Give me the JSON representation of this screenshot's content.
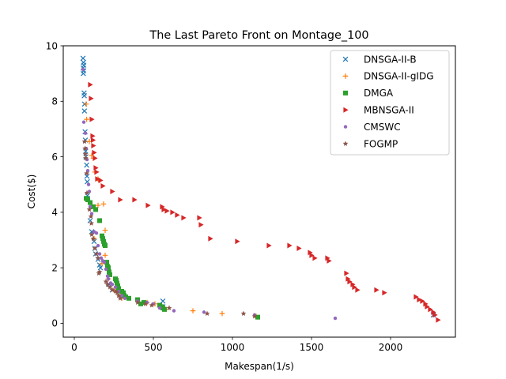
{
  "chart_data": {
    "type": "scatter",
    "title": "The Last Pareto Front on Montage_100",
    "xlabel": "Makespan(1/s)",
    "ylabel": "Cost($)",
    "xlim": [
      -70,
      2410
    ],
    "ylim": [
      -0.5,
      10.0
    ],
    "xticks": [
      0,
      500,
      1000,
      1500,
      2000
    ],
    "yticks": [
      0,
      2,
      4,
      6,
      8,
      10
    ],
    "grid": false,
    "legend_position": "top-right",
    "series": [
      {
        "name": "DNSGA-II-B",
        "marker": "x",
        "color": "#1f77b4",
        "points": [
          [
            55,
            9.55
          ],
          [
            58,
            9.4
          ],
          [
            60,
            9.3
          ],
          [
            56,
            9.2
          ],
          [
            59,
            9.1
          ],
          [
            57,
            9.0
          ],
          [
            62,
            8.3
          ],
          [
            63,
            8.2
          ],
          [
            65,
            7.9
          ],
          [
            64,
            7.65
          ],
          [
            68,
            6.9
          ],
          [
            70,
            6.6
          ],
          [
            72,
            6.2
          ],
          [
            73,
            6.0
          ],
          [
            78,
            5.7
          ],
          [
            80,
            5.3
          ],
          [
            82,
            5.1
          ],
          [
            83,
            4.6
          ],
          [
            84,
            4.5
          ],
          [
            100,
            3.7
          ],
          [
            110,
            3.3
          ],
          [
            125,
            2.95
          ],
          [
            130,
            2.7
          ],
          [
            135,
            2.5
          ],
          [
            150,
            2.3
          ],
          [
            160,
            2.1
          ],
          [
            165,
            2.0
          ],
          [
            220,
            1.4
          ],
          [
            240,
            1.2
          ],
          [
            300,
            0.95
          ],
          [
            560,
            0.8
          ],
          [
            560,
            0.6
          ],
          [
            2270,
            0.3
          ]
        ]
      },
      {
        "name": "DNSGA-II-gIDG",
        "marker": "+",
        "color": "#ff7f0e",
        "points": [
          [
            75,
            7.9
          ],
          [
            78,
            7.35
          ],
          [
            95,
            6.55
          ],
          [
            110,
            6.05
          ],
          [
            120,
            5.95
          ],
          [
            130,
            5.45
          ],
          [
            150,
            5.2
          ],
          [
            160,
            5.15
          ],
          [
            185,
            4.3
          ],
          [
            150,
            4.25
          ],
          [
            195,
            3.35
          ],
          [
            125,
            3.05
          ],
          [
            195,
            2.45
          ],
          [
            175,
            2.15
          ],
          [
            215,
            1.6
          ],
          [
            250,
            1.2
          ],
          [
            290,
            1.0
          ],
          [
            300,
            0.9
          ],
          [
            460,
            0.75
          ],
          [
            510,
            0.7
          ],
          [
            580,
            0.5
          ],
          [
            750,
            0.45
          ],
          [
            935,
            0.35
          ],
          [
            1150,
            0.25
          ]
        ]
      },
      {
        "name": "DMGA",
        "marker": "square",
        "color": "#2ca02c",
        "points": [
          [
            75,
            4.5
          ],
          [
            85,
            4.45
          ],
          [
            100,
            4.35
          ],
          [
            120,
            4.2
          ],
          [
            135,
            4.1
          ],
          [
            160,
            3.7
          ],
          [
            175,
            3.15
          ],
          [
            180,
            3.05
          ],
          [
            185,
            2.95
          ],
          [
            190,
            2.85
          ],
          [
            195,
            2.8
          ],
          [
            205,
            2.2
          ],
          [
            210,
            2.05
          ],
          [
            215,
            2.0
          ],
          [
            220,
            1.85
          ],
          [
            225,
            1.75
          ],
          [
            260,
            1.6
          ],
          [
            265,
            1.55
          ],
          [
            270,
            1.45
          ],
          [
            275,
            1.35
          ],
          [
            280,
            1.25
          ],
          [
            300,
            1.15
          ],
          [
            310,
            1.1
          ],
          [
            315,
            1.0
          ],
          [
            325,
            0.95
          ],
          [
            345,
            0.9
          ],
          [
            400,
            0.85
          ],
          [
            420,
            0.7
          ],
          [
            440,
            0.75
          ],
          [
            540,
            0.65
          ],
          [
            550,
            0.6
          ],
          [
            560,
            0.55
          ],
          [
            570,
            0.5
          ],
          [
            1160,
            0.22
          ]
        ]
      },
      {
        "name": "MBNSGA-II",
        "marker": "triangle-right",
        "color": "#d62728",
        "points": [
          [
            100,
            8.6
          ],
          [
            105,
            8.1
          ],
          [
            110,
            7.35
          ],
          [
            115,
            6.75
          ],
          [
            118,
            6.6
          ],
          [
            120,
            6.4
          ],
          [
            125,
            6.15
          ],
          [
            130,
            5.95
          ],
          [
            135,
            5.6
          ],
          [
            140,
            5.45
          ],
          [
            145,
            5.2
          ],
          [
            165,
            5.15
          ],
          [
            180,
            4.95
          ],
          [
            240,
            4.75
          ],
          [
            290,
            4.45
          ],
          [
            380,
            4.45
          ],
          [
            465,
            4.25
          ],
          [
            555,
            4.2
          ],
          [
            565,
            4.1
          ],
          [
            585,
            4.05
          ],
          [
            620,
            4.0
          ],
          [
            650,
            3.9
          ],
          [
            690,
            3.8
          ],
          [
            790,
            3.8
          ],
          [
            800,
            3.55
          ],
          [
            860,
            3.05
          ],
          [
            1030,
            2.95
          ],
          [
            1230,
            2.8
          ],
          [
            1360,
            2.8
          ],
          [
            1420,
            2.7
          ],
          [
            1490,
            2.55
          ],
          [
            1500,
            2.45
          ],
          [
            1520,
            2.35
          ],
          [
            1600,
            2.35
          ],
          [
            1610,
            2.25
          ],
          [
            1720,
            1.8
          ],
          [
            1730,
            1.6
          ],
          [
            1740,
            1.5
          ],
          [
            1760,
            1.4
          ],
          [
            1770,
            1.3
          ],
          [
            1790,
            1.2
          ],
          [
            1910,
            1.2
          ],
          [
            1960,
            1.1
          ],
          [
            2160,
            0.95
          ],
          [
            2180,
            0.85
          ],
          [
            2200,
            0.8
          ],
          [
            2220,
            0.7
          ],
          [
            2230,
            0.6
          ],
          [
            2250,
            0.5
          ],
          [
            2270,
            0.4
          ],
          [
            2280,
            0.3
          ],
          [
            2300,
            0.12
          ]
        ]
      },
      {
        "name": "CMSWC",
        "marker": "circle",
        "color": "#9467bd",
        "points": [
          [
            55,
            9.15
          ],
          [
            60,
            7.25
          ],
          [
            70,
            6.85
          ],
          [
            75,
            6.3
          ],
          [
            80,
            5.9
          ],
          [
            85,
            5.5
          ],
          [
            90,
            5.0
          ],
          [
            95,
            4.75
          ],
          [
            100,
            4.2
          ],
          [
            110,
            3.95
          ],
          [
            125,
            3.3
          ],
          [
            140,
            3.25
          ],
          [
            150,
            2.8
          ],
          [
            160,
            2.5
          ],
          [
            170,
            2.35
          ],
          [
            180,
            2.25
          ],
          [
            190,
            2.2
          ],
          [
            200,
            1.95
          ],
          [
            210,
            1.7
          ],
          [
            215,
            1.6
          ],
          [
            230,
            1.45
          ],
          [
            240,
            1.4
          ],
          [
            260,
            1.3
          ],
          [
            280,
            1.15
          ],
          [
            300,
            1.0
          ],
          [
            320,
            0.9
          ],
          [
            400,
            0.8
          ],
          [
            460,
            0.75
          ],
          [
            500,
            0.7
          ],
          [
            540,
            0.55
          ],
          [
            630,
            0.45
          ],
          [
            820,
            0.4
          ],
          [
            1140,
            0.3
          ],
          [
            1650,
            0.18
          ]
        ]
      },
      {
        "name": "FOGMP",
        "marker": "star",
        "color": "#8c564b",
        "points": [
          [
            65,
            6.55
          ],
          [
            68,
            6.3
          ],
          [
            70,
            6.1
          ],
          [
            72,
            5.95
          ],
          [
            78,
            5.4
          ],
          [
            80,
            4.7
          ],
          [
            95,
            4.1
          ],
          [
            105,
            3.85
          ],
          [
            108,
            3.6
          ],
          [
            110,
            3.2
          ],
          [
            120,
            3.05
          ],
          [
            130,
            2.7
          ],
          [
            140,
            2.5
          ],
          [
            150,
            2.35
          ],
          [
            155,
            1.8
          ],
          [
            160,
            1.85
          ],
          [
            200,
            1.5
          ],
          [
            210,
            1.4
          ],
          [
            225,
            1.3
          ],
          [
            240,
            1.2
          ],
          [
            260,
            1.15
          ],
          [
            270,
            1.1
          ],
          [
            280,
            1.0
          ],
          [
            290,
            0.9
          ],
          [
            400,
            0.75
          ],
          [
            450,
            0.7
          ],
          [
            490,
            0.65
          ],
          [
            600,
            0.55
          ],
          [
            840,
            0.35
          ],
          [
            1070,
            0.35
          ],
          [
            1140,
            0.25
          ]
        ]
      }
    ]
  }
}
